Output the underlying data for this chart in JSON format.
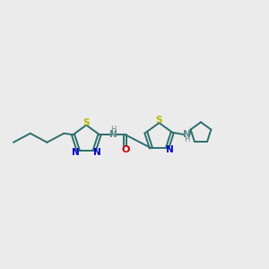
{
  "background_color": "#ebebeb",
  "bond_color": "#2d6e6e",
  "sulfur_color": "#b8b800",
  "nitrogen_color": "#0000cc",
  "oxygen_color": "#cc0000",
  "nh_color": "#5a8a8a",
  "figsize": [
    3.0,
    3.0
  ],
  "dpi": 100,
  "xlim": [
    0,
    12
  ],
  "ylim": [
    3,
    9
  ]
}
